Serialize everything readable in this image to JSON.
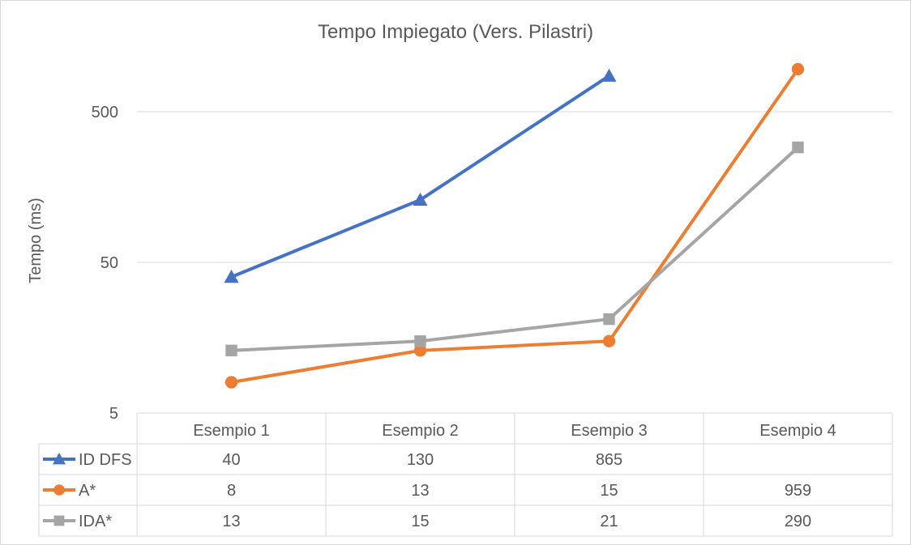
{
  "chart_data": {
    "type": "line",
    "title": "Tempo Impiegato (Vers. Pilastri)",
    "ylabel": "Tempo (ms)",
    "xlabel": "",
    "y_scale": "log",
    "ylim": [
      5,
      1000
    ],
    "y_ticks": [
      {
        "value": 5,
        "label": "5"
      },
      {
        "value": 50,
        "label": "50"
      },
      {
        "value": 500,
        "label": "500"
      }
    ],
    "categories": [
      "Esempio 1",
      "Esempio 2",
      "Esempio 3",
      "Esempio 4"
    ],
    "grid": true,
    "legend": "data-table",
    "series": [
      {
        "name": "ID DFS",
        "color": "#4472c4",
        "marker": "triangle",
        "values": [
          40,
          130,
          865,
          null
        ]
      },
      {
        "name": "A*",
        "color": "#ed7d31",
        "marker": "circle",
        "values": [
          8,
          13,
          15,
          959
        ]
      },
      {
        "name": "IDA*",
        "color": "#a5a5a5",
        "marker": "square",
        "values": [
          13,
          15,
          21,
          290
        ]
      }
    ]
  }
}
